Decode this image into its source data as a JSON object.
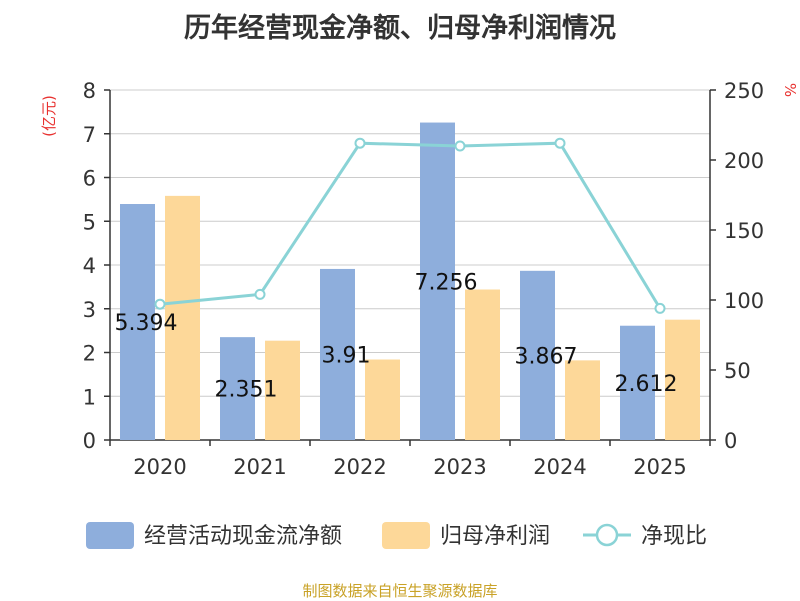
{
  "chart_data": {
    "type": "bar",
    "title": "历年经营现金净额、归母净利润情况",
    "categories": [
      "2020",
      "2021",
      "2022",
      "2023",
      "2024",
      "2025"
    ],
    "y_left": {
      "unit_label": "(亿元)",
      "min": 0,
      "max": 8,
      "ticks": [
        0,
        1,
        2,
        3,
        4,
        5,
        6,
        7,
        8
      ]
    },
    "y_right": {
      "unit_label": "%",
      "min": 0,
      "max": 250,
      "ticks": [
        0,
        50,
        100,
        150,
        200,
        250
      ]
    },
    "grid": true,
    "legend_position": "bottom",
    "series": [
      {
        "name": "经营活动现金流净额",
        "type": "bar",
        "axis": "left",
        "color": "#8eaedc",
        "values": [
          5.394,
          2.351,
          3.91,
          7.256,
          3.867,
          2.612
        ],
        "labels": [
          "5.394",
          "2.351",
          "3.91",
          "7.256",
          "3.867",
          "2.612"
        ]
      },
      {
        "name": "归母净利润",
        "type": "bar",
        "axis": "left",
        "color": "#fdd899",
        "values": [
          5.58,
          2.27,
          1.84,
          3.44,
          1.82,
          2.75
        ]
      },
      {
        "name": "净现比",
        "type": "line",
        "axis": "right",
        "color": "#8ad3d6",
        "values": [
          97,
          104,
          212,
          210,
          212,
          94
        ]
      }
    ]
  },
  "footer": {
    "source": "制图数据来自恒生聚源数据库"
  }
}
